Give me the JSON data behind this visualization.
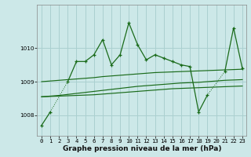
{
  "title": "Graphe pression niveau de la mer (hPa)",
  "bg_color": "#cce8e8",
  "grid_color": "#aad0d0",
  "line_color": "#1a6b1a",
  "x_labels": [
    "0",
    "1",
    "2",
    "3",
    "4",
    "5",
    "6",
    "7",
    "8",
    "9",
    "10",
    "11",
    "12",
    "13",
    "14",
    "15",
    "16",
    "17",
    "18",
    "19",
    "20",
    "21",
    "22",
    "23"
  ],
  "x_values": [
    0,
    1,
    2,
    3,
    4,
    5,
    6,
    7,
    8,
    9,
    10,
    11,
    12,
    13,
    14,
    15,
    16,
    17,
    18,
    19,
    20,
    21,
    22,
    23
  ],
  "main_data": [
    1007.7,
    1008.1,
    null,
    1009.0,
    1009.6,
    1009.6,
    1009.8,
    1010.25,
    1009.5,
    1009.8,
    1010.75,
    1010.1,
    1009.65,
    1009.8,
    1009.7,
    1009.6,
    1009.5,
    1009.45,
    1008.1,
    1008.6,
    null,
    1009.3,
    1010.6,
    1009.4
  ],
  "smooth_top": [
    1009.0,
    1009.02,
    1009.04,
    1009.06,
    1009.08,
    1009.1,
    1009.12,
    1009.15,
    1009.17,
    1009.19,
    1009.21,
    1009.23,
    1009.25,
    1009.27,
    1009.28,
    1009.29,
    1009.3,
    1009.31,
    1009.32,
    1009.33,
    1009.34,
    1009.35,
    1009.36,
    1009.37
  ],
  "smooth_mid": [
    1008.55,
    1008.57,
    1008.59,
    1008.62,
    1008.65,
    1008.68,
    1008.71,
    1008.74,
    1008.77,
    1008.8,
    1008.83,
    1008.86,
    1008.88,
    1008.9,
    1008.92,
    1008.94,
    1008.96,
    1008.97,
    1008.98,
    1009.0,
    1009.02,
    1009.04,
    1009.05,
    1009.06
  ],
  "smooth_bot": [
    1008.55,
    1008.56,
    1008.57,
    1008.58,
    1008.59,
    1008.6,
    1008.61,
    1008.63,
    1008.65,
    1008.67,
    1008.69,
    1008.71,
    1008.73,
    1008.75,
    1008.77,
    1008.79,
    1008.8,
    1008.81,
    1008.82,
    1008.83,
    1008.84,
    1008.85,
    1008.86,
    1008.87
  ],
  "ylim": [
    1007.4,
    1011.3
  ],
  "yticks": [
    1008,
    1009,
    1010
  ],
  "xlabel_fontsize": 6.5,
  "tick_fontsize": 5.2
}
